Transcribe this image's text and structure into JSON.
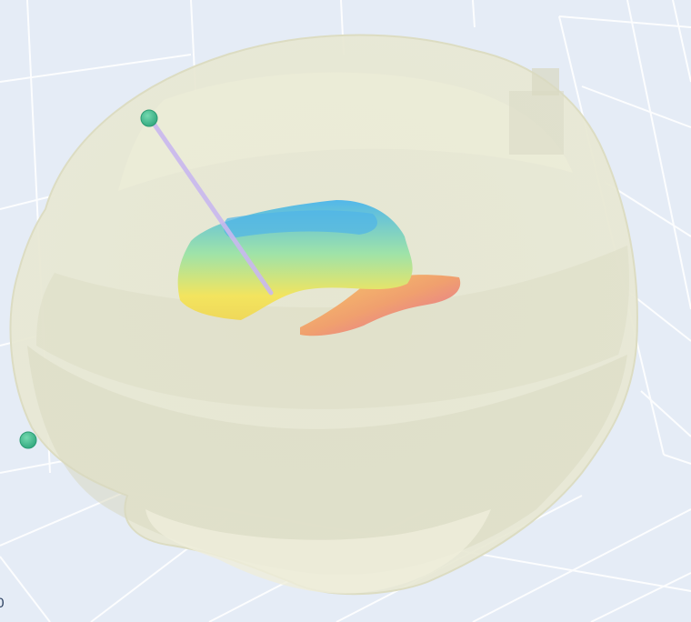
{
  "scene": {
    "background_color": "#e5ecf6",
    "grid_color": "#ffffff",
    "brain_color": "#e8e8d2",
    "electrode_color": "#3bb38a",
    "probe_color": "#c9b8ef",
    "surface_colors": [
      "#5bbde9",
      "#9de3a6",
      "#f2e35d",
      "#f2b06a",
      "#e76f9f"
    ]
  },
  "axis": {
    "corner_tick": "0"
  },
  "markers": [
    {
      "name": "electrode-marker-top"
    },
    {
      "name": "electrode-marker-left"
    }
  ]
}
